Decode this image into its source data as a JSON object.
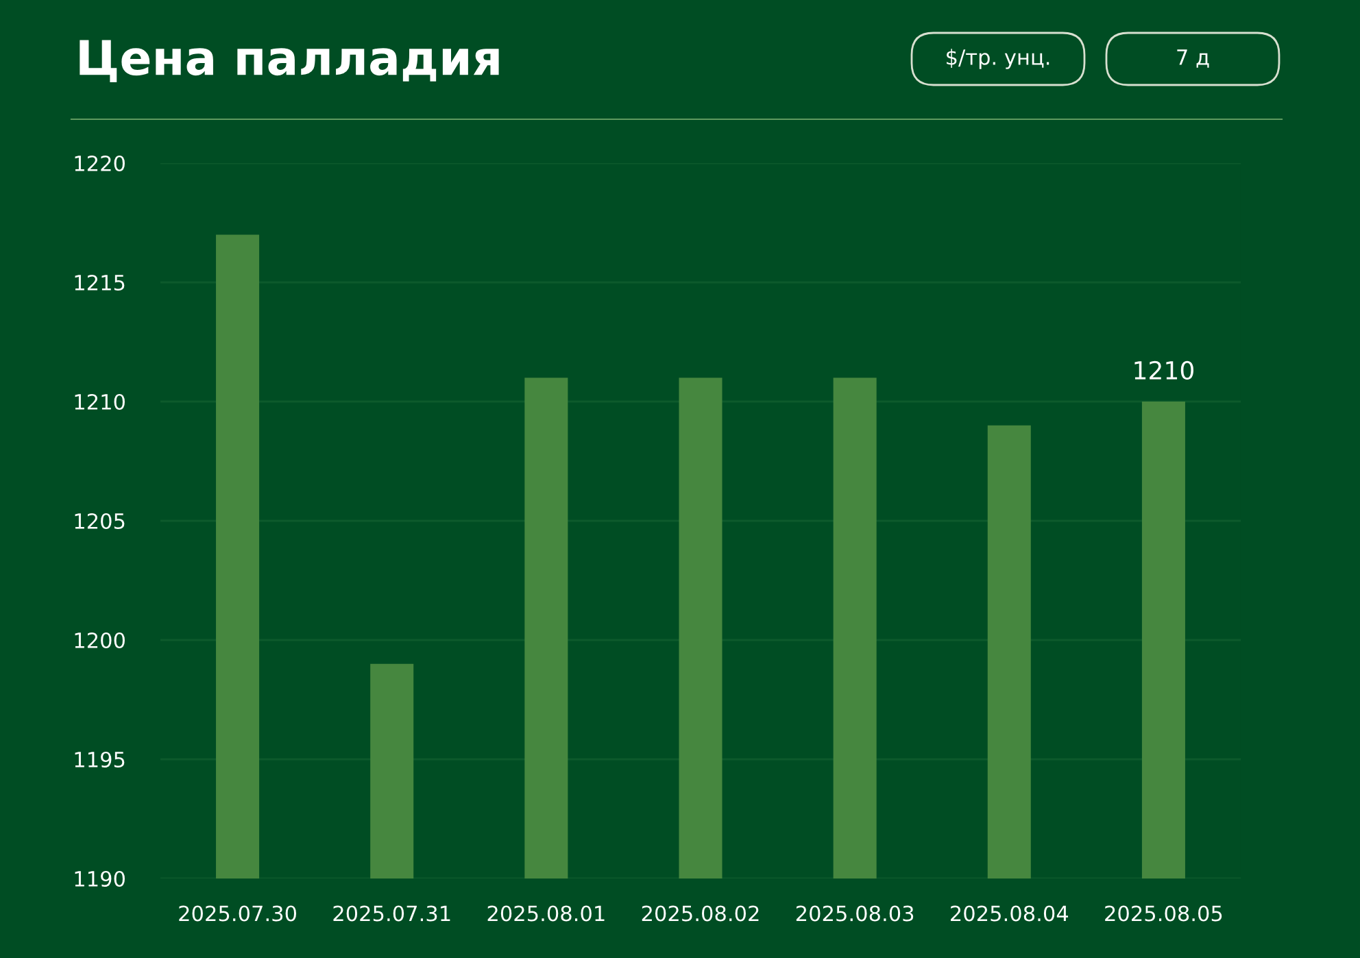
{
  "chart_data": {
    "type": "bar",
    "title": "Цена палладия",
    "annotations": [
      "$/тр. унц.",
      "7 д"
    ],
    "categories": [
      "2025.07.30",
      "2025.07.31",
      "2025.08.01",
      "2025.08.02",
      "2025.08.03",
      "2025.08.04",
      "2025.08.05"
    ],
    "values": [
      1217,
      1199,
      1211,
      1211,
      1211,
      1209,
      1210
    ],
    "value_labels": [
      null,
      null,
      null,
      null,
      null,
      null,
      "1210"
    ],
    "color": "#46873f",
    "ylim": [
      1190,
      1220
    ],
    "yticks": [
      1190,
      1195,
      1200,
      1205,
      1210,
      1215,
      1220
    ],
    "grid": "y"
  }
}
